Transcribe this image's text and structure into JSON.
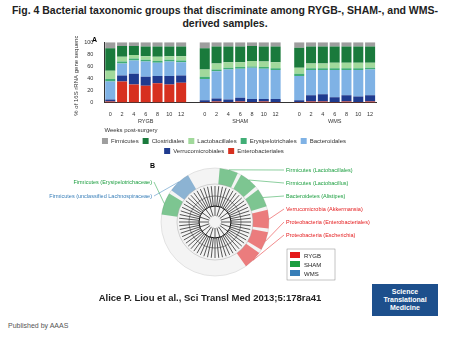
{
  "title": "Fig. 4 Bacterial taxonomic groups that discriminate among RYGB-, SHAM-, and WMS-derived samples.",
  "panels": [
    "A",
    "B"
  ],
  "chart_data": {
    "type": "bar",
    "stacked": true,
    "grid": false,
    "legend": "bottom",
    "xlabel": "Weeks post-surgery",
    "ylabel": "% of 16S rRNA gene sequences",
    "groups": [
      "RYGB",
      "SHAM",
      "WMS"
    ],
    "categories": [
      "0",
      "2",
      "4",
      "6",
      "8",
      "10",
      "12",
      null,
      "0",
      "2",
      "4",
      "6",
      "8",
      "10",
      "12",
      null,
      "0",
      "2",
      "4",
      "6",
      "8",
      "10",
      "12"
    ],
    "ylim": [
      0,
      100
    ],
    "yticks": [
      0,
      20,
      40,
      60,
      80,
      100
    ],
    "series": [
      {
        "name": "Enterobacteriales",
        "color": "#d7301f",
        "values": [
          2,
          35,
          30,
          28,
          32,
          30,
          33,
          null,
          1,
          2,
          1,
          2,
          1,
          2,
          1,
          null,
          1,
          2,
          2,
          1,
          2,
          1,
          2
        ]
      },
      {
        "name": "Verrucomicrobiales",
        "color": "#1f3b8f",
        "values": [
          3,
          10,
          18,
          15,
          12,
          14,
          12,
          null,
          3,
          5,
          4,
          6,
          5,
          4,
          5,
          null,
          3,
          10,
          12,
          8,
          10,
          9,
          10
        ]
      },
      {
        "name": "Bacteroidales",
        "color": "#7fb2e5",
        "values": [
          30,
          20,
          22,
          25,
          22,
          24,
          22,
          null,
          35,
          45,
          50,
          48,
          52,
          50,
          48,
          null,
          40,
          42,
          40,
          45,
          42,
          44,
          43
        ]
      },
      {
        "name": "Erysipelotrichales",
        "color": "#41ae76",
        "values": [
          4,
          3,
          3,
          3,
          3,
          3,
          3,
          null,
          4,
          3,
          3,
          3,
          2,
          3,
          3,
          null,
          4,
          3,
          3,
          3,
          3,
          3,
          3
        ]
      },
      {
        "name": "Lactobacillales",
        "color": "#a1d99b",
        "values": [
          14,
          8,
          6,
          6,
          7,
          6,
          7,
          null,
          12,
          10,
          9,
          8,
          9,
          9,
          10,
          null,
          10,
          8,
          8,
          9,
          9,
          9,
          8
        ]
      },
      {
        "name": "Clostridiales",
        "color": "#1a7a3c",
        "values": [
          37,
          18,
          15,
          16,
          17,
          16,
          16,
          null,
          35,
          28,
          26,
          26,
          25,
          25,
          26,
          null,
          33,
          28,
          28,
          27,
          27,
          27,
          27
        ]
      },
      {
        "name": "Firmicutes",
        "color": "#9e9e9e",
        "values": [
          10,
          6,
          6,
          7,
          7,
          7,
          7,
          null,
          10,
          7,
          7,
          7,
          6,
          7,
          7,
          null,
          9,
          7,
          7,
          7,
          7,
          7,
          7
        ]
      }
    ]
  },
  "cladogram": {
    "legend": [
      {
        "name": "RYGB",
        "color": "#e41a1c"
      },
      {
        "name": "SHAM",
        "color": "#1b9e3f"
      },
      {
        "name": "WMS",
        "color": "#377eb8"
      }
    ],
    "labels_right": [
      {
        "text": "Firmicutes (Lactobacillales)",
        "group": "SHAM"
      },
      {
        "text": "Firmicutes (Lactobacillus)",
        "group": "SHAM"
      },
      {
        "text": "Bacteroidetes (Alistipes)",
        "group": "SHAM"
      },
      {
        "text": "Verrucomicrobia (Akkermansia)",
        "group": "RYGB"
      },
      {
        "text": "Proteobacteria (Enterobacteriales)",
        "group": "RYGB"
      },
      {
        "text": "Proteobacteria (Escherichia)",
        "group": "RYGB"
      }
    ],
    "labels_left": [
      {
        "text": "Firmicutes (Erysipelotrichaceae)",
        "group": "SHAM"
      },
      {
        "text": "Firmicutes (unclassified Lachnospiraceae)",
        "group": "WMS"
      }
    ]
  },
  "citation": "Alice P. Liou et al., Sci Transl Med 2013;5:178ra41",
  "journal": "Science Translational Medicine",
  "publisher": "Published by AAAS"
}
